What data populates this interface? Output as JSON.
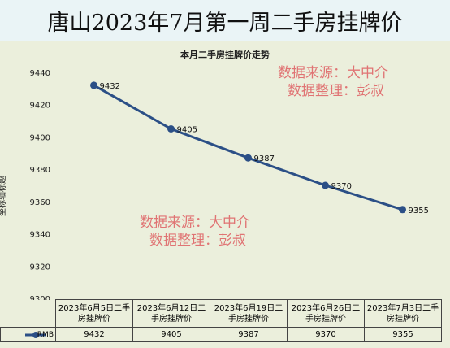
{
  "title": "唐山2023年7月第一周二手房挂牌价",
  "chart_data": {
    "type": "line",
    "title": "本月二手房挂牌价走势",
    "ylabel": "坐标轴标题",
    "xlabel": "",
    "categories": [
      "2023年6月5日二手房挂牌价",
      "2023年6月12日二手房挂牌价",
      "2023年6月19日二手房挂牌价",
      "2023年6月26日二手房挂牌价",
      "2023年7月3日二手房挂牌价"
    ],
    "series": [
      {
        "name": "RMB",
        "values": [
          9432,
          9405,
          9387,
          9370,
          9355
        ]
      }
    ],
    "ylim": [
      9300,
      9440
    ],
    "yticks": [
      9300,
      9320,
      9340,
      9360,
      9380,
      9400,
      9420,
      9440
    ],
    "grid": false,
    "legend": "data-table",
    "line_color": "#2b4f86"
  },
  "watermarks": [
    {
      "line1": "数据来源：大中介",
      "line2": "数据整理：彭叔"
    },
    {
      "line1": "数据来源：大中介",
      "line2": "数据整理：彭叔"
    }
  ]
}
